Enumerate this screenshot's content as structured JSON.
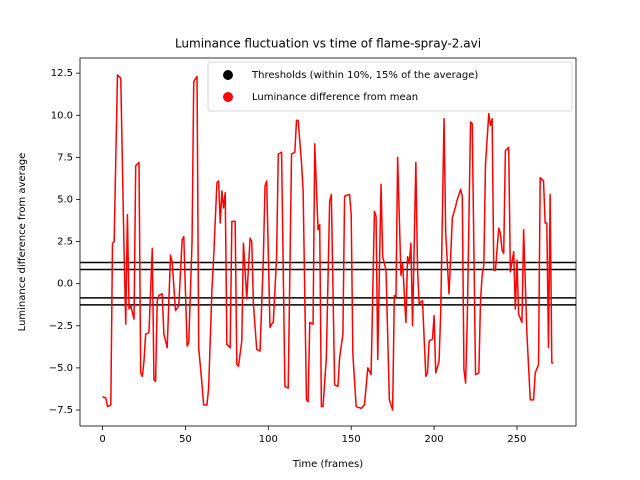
{
  "chart_data": {
    "type": "line",
    "title": "Luminance fluctuation vs time of flame-spray-2.avi",
    "xlabel": "Time (frames)",
    "ylabel": "Luminance difference from average",
    "xlim": [
      -13.6,
      285.6
    ],
    "ylim": [
      -8.45,
      13.4
    ],
    "xticks": [
      0,
      50,
      100,
      150,
      200,
      250
    ],
    "yticks": [
      {
        "value": -7.5,
        "label": "−7.5"
      },
      {
        "value": -5,
        "label": "−5.0"
      },
      {
        "value": -2.5,
        "label": "−2.5"
      },
      {
        "value": 0,
        "label": "0.0"
      },
      2.5,
      {
        "value": 5,
        "label": "5.0"
      },
      7.5,
      {
        "value": 10,
        "label": "10.0"
      },
      12.5
    ],
    "legend": "upper right",
    "thresholds": {
      "name": "Thresholds (within 10%, 15% of the average)",
      "color": "#000000",
      "values": [
        1.26,
        0.84,
        -0.84,
        -1.26
      ]
    },
    "x": [
      0,
      2,
      3,
      5,
      6,
      7,
      9,
      11,
      13,
      14,
      15,
      16,
      17,
      19,
      20,
      22,
      23,
      24,
      25,
      26,
      28,
      30,
      31,
      32,
      33,
      34,
      36,
      37,
      39,
      41,
      42,
      44,
      46,
      48,
      49,
      51,
      52,
      54,
      55,
      57,
      58,
      60,
      61,
      63,
      64,
      66,
      67,
      69,
      70,
      71,
      72,
      73,
      74,
      75,
      77,
      78,
      80,
      81,
      82,
      84,
      85,
      87,
      89,
      90,
      91,
      93,
      95,
      97,
      98,
      99,
      101,
      102,
      103,
      105,
      106,
      108,
      110,
      112,
      114,
      116,
      117,
      118,
      120,
      121,
      123,
      124,
      125,
      127,
      128,
      130,
      131,
      132,
      133,
      135,
      137,
      138,
      140,
      142,
      143,
      145,
      146,
      149,
      150,
      151,
      153,
      156,
      158,
      160,
      162,
      164,
      165,
      166,
      168,
      169,
      171,
      173,
      175,
      176,
      177,
      178,
      180,
      181,
      183,
      184,
      185,
      186,
      187,
      189,
      190,
      191,
      193,
      195,
      196,
      197,
      199,
      200,
      201,
      203,
      204,
      206,
      207,
      209,
      210,
      211,
      213,
      214,
      216,
      217,
      218,
      219,
      220,
      222,
      223,
      225,
      227,
      228,
      229,
      230,
      231,
      233,
      234,
      235,
      236,
      237,
      239,
      240,
      241,
      242,
      243,
      245,
      246,
      248,
      249,
      250,
      251,
      253,
      254,
      256,
      258,
      260,
      261,
      263,
      264,
      266,
      267,
      268,
      269,
      270,
      271,
      272
    ],
    "series": [
      {
        "name": "Luminance difference from mean",
        "color": "#ff0000",
        "values": [
          -6.7,
          -6.8,
          -7.3,
          -7.2,
          2.4,
          2.5,
          12.4,
          12.2,
          1.8,
          -2.4,
          4.1,
          -1.5,
          -1.3,
          -2.1,
          7.0,
          7.2,
          -5.3,
          -5.5,
          -4.6,
          -3.0,
          -2.9,
          2.1,
          -5.7,
          -5.8,
          -1.0,
          -0.7,
          -0.6,
          -3.0,
          -3.8,
          1.7,
          1.3,
          -1.6,
          -1.3,
          2.6,
          2.8,
          -3.7,
          -3.5,
          2.5,
          12.0,
          12.3,
          -3.8,
          -6.0,
          -7.2,
          -7.2,
          -6.2,
          -0.3,
          1.5,
          6.0,
          6.1,
          3.6,
          5.5,
          4.5,
          5.4,
          -3.6,
          -3.8,
          3.7,
          3.7,
          -4.8,
          -4.9,
          -3.4,
          2.4,
          -0.9,
          2.7,
          2.5,
          -1.2,
          -3.9,
          -4.0,
          1.5,
          5.8,
          6.1,
          -2.6,
          -2.4,
          -2.3,
          1.6,
          7.7,
          7.8,
          -6.1,
          -6.2,
          7.7,
          7.8,
          9.7,
          9.7,
          7.2,
          5.5,
          -6.9,
          -7.0,
          -2.3,
          -2.4,
          8.3,
          3.2,
          3.5,
          -7.3,
          -7.3,
          -4.4,
          4.9,
          5.3,
          -6.0,
          -6.1,
          -4.4,
          -3.0,
          5.2,
          5.3,
          4.1,
          -4.2,
          -7.3,
          -7.4,
          -7.2,
          -5.0,
          -5.4,
          4.3,
          4.0,
          -4.5,
          5.9,
          1.6,
          0.8,
          -6.9,
          -7.5,
          -0.7,
          -0.8,
          7.5,
          0.5,
          1.2,
          -2.3,
          1.6,
          1.2,
          2.4,
          -2.5,
          7.2,
          0.9,
          -1.2,
          -1.0,
          -5.5,
          -5.3,
          -3.4,
          -3.3,
          -1.9,
          -5.3,
          -4.6,
          -1.7,
          9.8,
          3.0,
          -0.6,
          1.6,
          3.9,
          4.6,
          5.0,
          5.6,
          5.2,
          -5.1,
          -5.9,
          -2.2,
          9.6,
          9.5,
          -5.4,
          -5.3,
          -1.0,
          0.5,
          1.1,
          7.1,
          10.1,
          9.4,
          9.8,
          0.8,
          0.8,
          3.3,
          3.0,
          2.0,
          1.8,
          7.9,
          8.1,
          0.7,
          1.9,
          -1.5,
          1.4,
          -1.8,
          -2.3,
          3.2,
          -3.0,
          -6.9,
          -6.9,
          -5.3,
          -4.8,
          6.3,
          6.1,
          3.6,
          3.6,
          -3.8,
          5.3,
          -4.7,
          -4.7
        ]
      }
    ]
  }
}
